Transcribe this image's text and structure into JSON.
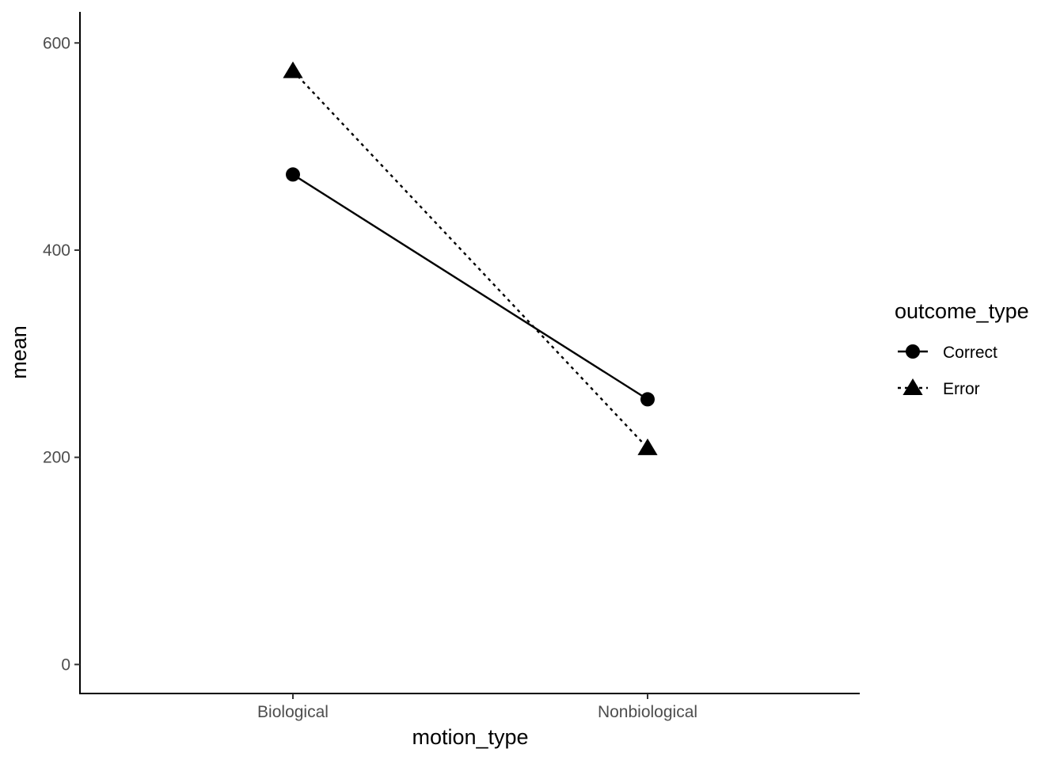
{
  "chart_data": {
    "type": "line",
    "categories": [
      "Biological",
      "Nonbiological"
    ],
    "xlabel": "motion_type",
    "ylabel": "mean",
    "ylim": [
      -28,
      630
    ],
    "yticks": [
      0,
      200,
      400,
      600
    ],
    "grid": false,
    "legend": {
      "title": "outcome_type",
      "placement": "right"
    },
    "series": [
      {
        "name": "Correct",
        "values": [
          473,
          256
        ],
        "marker": "circle",
        "linetype": "solid",
        "color": "#000000"
      },
      {
        "name": "Error",
        "values": [
          573,
          209
        ],
        "marker": "triangle",
        "linetype": "dotted",
        "color": "#000000"
      }
    ]
  }
}
